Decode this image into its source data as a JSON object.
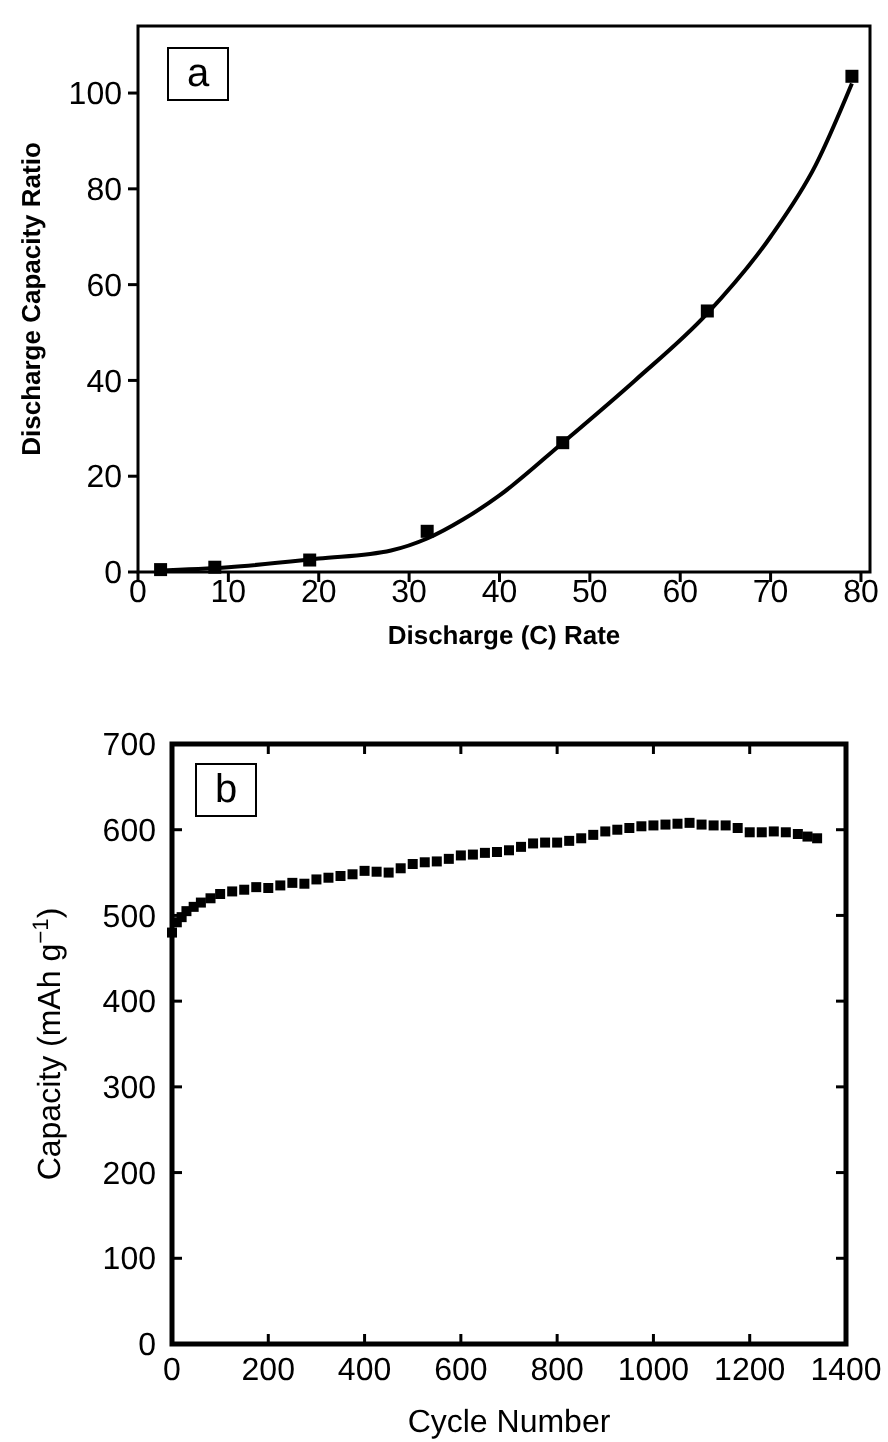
{
  "chart_data": [
    {
      "type": "scatter",
      "xlabel": "Discharge (C) Rate",
      "ylabel": "Discharge Capacity Ratio",
      "annotations": [
        "a"
      ],
      "xlim": [
        0,
        81
      ],
      "ylim": [
        0,
        114
      ],
      "xticks": [
        0,
        10,
        20,
        30,
        40,
        50,
        60,
        70,
        80
      ],
      "yticks": [
        0,
        20,
        40,
        60,
        80,
        100
      ],
      "marker": "square",
      "grid": false,
      "series": [
        {
          "color": "#000000",
          "x": [
            2.5,
            8.5,
            19,
            32,
            47,
            63,
            79
          ],
          "values": [
            0.5,
            1,
            2.5,
            8.5,
            27,
            54.5,
            103.5
          ]
        },
        {
          "type": "line",
          "color": "#000000",
          "line_style": "solid",
          "marker": "none",
          "x": [
            2,
            10,
            20,
            28,
            32,
            36,
            40,
            47,
            55,
            63,
            70,
            75,
            79
          ],
          "values": [
            0.3,
            1,
            2.8,
            4.5,
            7,
            11,
            16,
            27,
            40,
            54,
            70,
            85,
            102
          ]
        }
      ]
    },
    {
      "type": "scatter",
      "xlabel": "Cycle Number",
      "ylabel": "Capacity (mAh g$^{−1}$)",
      "annotations": [
        "b"
      ],
      "xlim": [
        0,
        1400
      ],
      "ylim": [
        0,
        700
      ],
      "xticks": [
        0,
        200,
        400,
        600,
        800,
        1000,
        1200,
        1400
      ],
      "yticks": [
        0,
        100,
        200,
        300,
        400,
        500,
        600,
        700
      ],
      "marker": "square",
      "grid": false,
      "series": [
        {
          "color": "#000000",
          "x": [
            0,
            10,
            20,
            30,
            45,
            60,
            80,
            100,
            125,
            150,
            175,
            200,
            225,
            250,
            275,
            300,
            325,
            350,
            375,
            400,
            425,
            450,
            475,
            500,
            525,
            550,
            575,
            600,
            625,
            650,
            675,
            700,
            725,
            750,
            775,
            800,
            825,
            850,
            875,
            900,
            925,
            950,
            975,
            1000,
            1025,
            1050,
            1075,
            1100,
            1125,
            1150,
            1175,
            1200,
            1225,
            1250,
            1275,
            1300,
            1320,
            1340
          ],
          "values": [
            480,
            492,
            498,
            505,
            510,
            515,
            520,
            525,
            528,
            530,
            533,
            532,
            535,
            538,
            537,
            542,
            544,
            546,
            548,
            552,
            551,
            550,
            555,
            560,
            562,
            563,
            566,
            570,
            571,
            573,
            574,
            576,
            580,
            584,
            585,
            585,
            587,
            590,
            594,
            598,
            600,
            602,
            604,
            605,
            606,
            607,
            608,
            606,
            605,
            605,
            602,
            597,
            597,
            598,
            597,
            595,
            592,
            590
          ]
        }
      ]
    }
  ]
}
